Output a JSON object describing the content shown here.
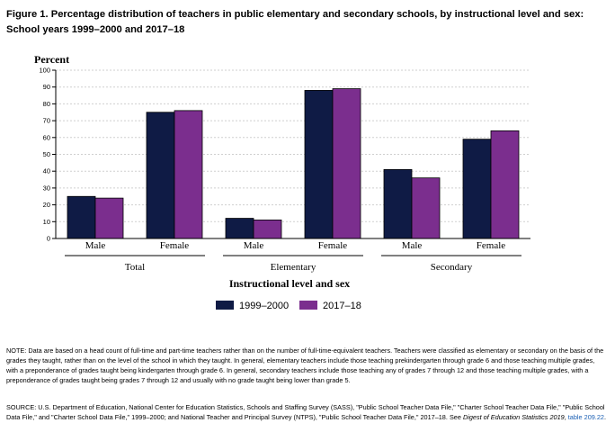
{
  "figure_title_line1": "Figure 1. Percentage distribution of teachers in public elementary and secondary schools, by instructional level and sex:",
  "figure_title_line2": "School years 1999–2000 and 2017–18",
  "colors": {
    "series1": "#0f1b45",
    "series2": "#7b2e8e",
    "grid": "#cfcfcf",
    "axis": "#000000"
  },
  "chart_data": {
    "type": "bar",
    "ylabel": "Percent",
    "xlabel": "Instructional level and sex",
    "ylim": [
      0,
      100
    ],
    "yticks": [
      0,
      10,
      20,
      30,
      40,
      50,
      60,
      70,
      80,
      90,
      100
    ],
    "grid": true,
    "categories": [
      "Male",
      "Female",
      "Male",
      "Female",
      "Male",
      "Female"
    ],
    "groups": [
      {
        "label": "Total",
        "categories": [
          "Male",
          "Female"
        ]
      },
      {
        "label": "Elementary",
        "categories": [
          "Male",
          "Female"
        ]
      },
      {
        "label": "Secondary",
        "categories": [
          "Male",
          "Female"
        ]
      }
    ],
    "series": [
      {
        "name": "1999–2000",
        "values": [
          25,
          75,
          12,
          88,
          41,
          59
        ]
      },
      {
        "name": "2017–18",
        "values": [
          24,
          76,
          11,
          89,
          36,
          64
        ]
      }
    ],
    "legend": "bottom-center"
  },
  "note": "NOTE: Data are based on a head count of full-time and part-time teachers rather than on the number of full-time-equivalent teachers. Teachers were classified as elementary or secondary on the basis of the grades they taught, rather than on the level of the school in which they taught. In general, elementary teachers include those teaching prekindergarten through grade 6 and those teaching multiple grades, with a preponderance of grades taught being kindergarten through grade 6. In general, secondary teachers include those teaching any of grades 7 through 12 and those teaching multiple grades, with a preponderance of grades taught being grades 7 through 12 and usually with no grade taught being lower than grade 5.",
  "source": {
    "text": "SOURCE: U.S. Department of Education, National Center for Education Statistics, Schools and Staffing Survey (SASS), \"Public School Teacher Data File,\" \"Charter School Teacher Data File,\" \"Public School Data File,\" and \"Charter School Data File,\" 1999–2000; and National Teacher and Principal Survey (NTPS), \"Public School Teacher Data File,\" 2017–18.",
    "see_prefix": "See ",
    "see_italic": "Digest of Education Statistics 2019",
    "see_comma": ", ",
    "link": "table 209.22",
    "end": "."
  }
}
